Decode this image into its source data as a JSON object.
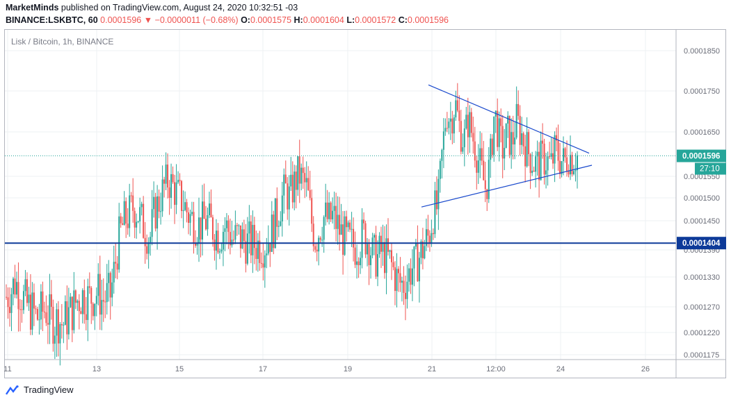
{
  "header": {
    "author": "MarketMinds",
    "published": "published on TradingView.com, August 24, 2020 10:32:51 -03",
    "symbol": "BINANCE:LSKBTC, 60",
    "close_value": "0.0001596",
    "change": "▼ −0.0000011 (−0.68%)",
    "o_label": "O:",
    "o_value": "0.0001575",
    "h_label": "H:",
    "h_value": "0.0001604",
    "l_label": "L:",
    "l_value": "0.0001572",
    "c_label": "C:",
    "c_value": "0.0001596"
  },
  "legend": "Lisk / Bitcoin, 1h, BINANCE",
  "footer": {
    "brand": "TradingView"
  },
  "colors": {
    "up": "#26a69a",
    "down": "#ef5350",
    "line": "#1848cc",
    "hline": "#0d3a99",
    "price": "#26a69a"
  },
  "chart_data": {
    "type": "candlestick",
    "y_ticks": [
      "0.0001850",
      "0.0001750",
      "0.0001650",
      "0.0001550",
      "0.0001500",
      "0.0001450",
      "0.0001390",
      "0.0001330",
      "0.0001270",
      "0.0001220",
      "0.0001175"
    ],
    "x_ticks": [
      "11",
      "13",
      "15",
      "17",
      "19",
      "21",
      "12:00",
      "24",
      "26"
    ],
    "last_price": {
      "value": "0.0001596",
      "countdown": "27:10"
    },
    "horizontal_line": {
      "value": "0.0001404"
    },
    "triangle": {
      "upper": [
        [
          0.0,
          0.0001765
        ],
        [
          1.0,
          0.0001602
        ]
      ],
      "lower": [
        [
          0.0,
          0.000148
        ],
        [
          1.0,
          0.0001575
        ]
      ]
    },
    "series_closes": [
      0.000129,
      0.00013,
      0.000132,
      0.0001305,
      0.0001285,
      0.000127,
      0.0001262,
      0.0001248,
      0.0001258,
      0.0001266,
      0.000125,
      0.000124,
      0.0001245,
      0.0001236,
      0.000125,
      0.0001262,
      0.000128,
      0.000129,
      0.0001293,
      0.0001287,
      0.0001292,
      0.00013,
      0.0001282,
      0.000129,
      0.0001295,
      0.000136,
      0.000142,
      0.0001448,
      0.0001462,
      0.000148,
      0.000147,
      0.000145,
      0.000143,
      0.0001415,
      0.0001468,
      0.000149,
      0.000152,
      0.000154,
      0.000153,
      0.0001512,
      0.00015,
      0.000148,
      0.000146,
      0.000145,
      0.000144,
      0.0001445,
      0.0001452,
      0.000144,
      0.0001428,
      0.000142,
      0.000144,
      0.000143,
      0.000141,
      0.0001418,
      0.0001412,
      0.0001405,
      0.0001404,
      0.0001402,
      0.00014,
      0.0001398,
      0.000141,
      0.000143,
      0.000146,
      0.000149,
      0.000152,
      0.00015,
      0.000153,
      0.0001555,
      0.000154,
      0.000152,
      0.000145,
      0.000141,
      0.000144,
      0.000146,
      0.000145,
      0.000146,
      0.000144,
      0.000142,
      0.000141,
      0.0001402,
      0.0001395,
      0.0001405,
      0.000142,
      0.000141,
      0.000138,
      0.000137,
      0.0001385,
      0.0001375,
      0.0001365,
      0.000134,
      0.000132,
      0.0001315,
      0.000133,
      0.000135,
      0.000136,
      0.000138,
      0.00014,
      0.000142,
      0.000147,
      0.000148,
      0.00016,
      0.00017,
      0.000168,
      0.000172,
      0.000166,
      0.000163,
      0.000168,
      0.000164,
      0.00016,
      0.000156,
      0.000152,
      0.000158,
      0.00017,
      0.000164,
      0.000161,
      0.000165,
      0.000162,
      0.000168,
      0.000165,
      0.000162,
      0.00016,
      0.000158,
      0.0001575,
      0.000159,
      0.0001585,
      0.0001575,
      0.000161,
      0.000159,
      0.000158,
      0.00016,
      0.000159,
      0.0001596
    ]
  }
}
